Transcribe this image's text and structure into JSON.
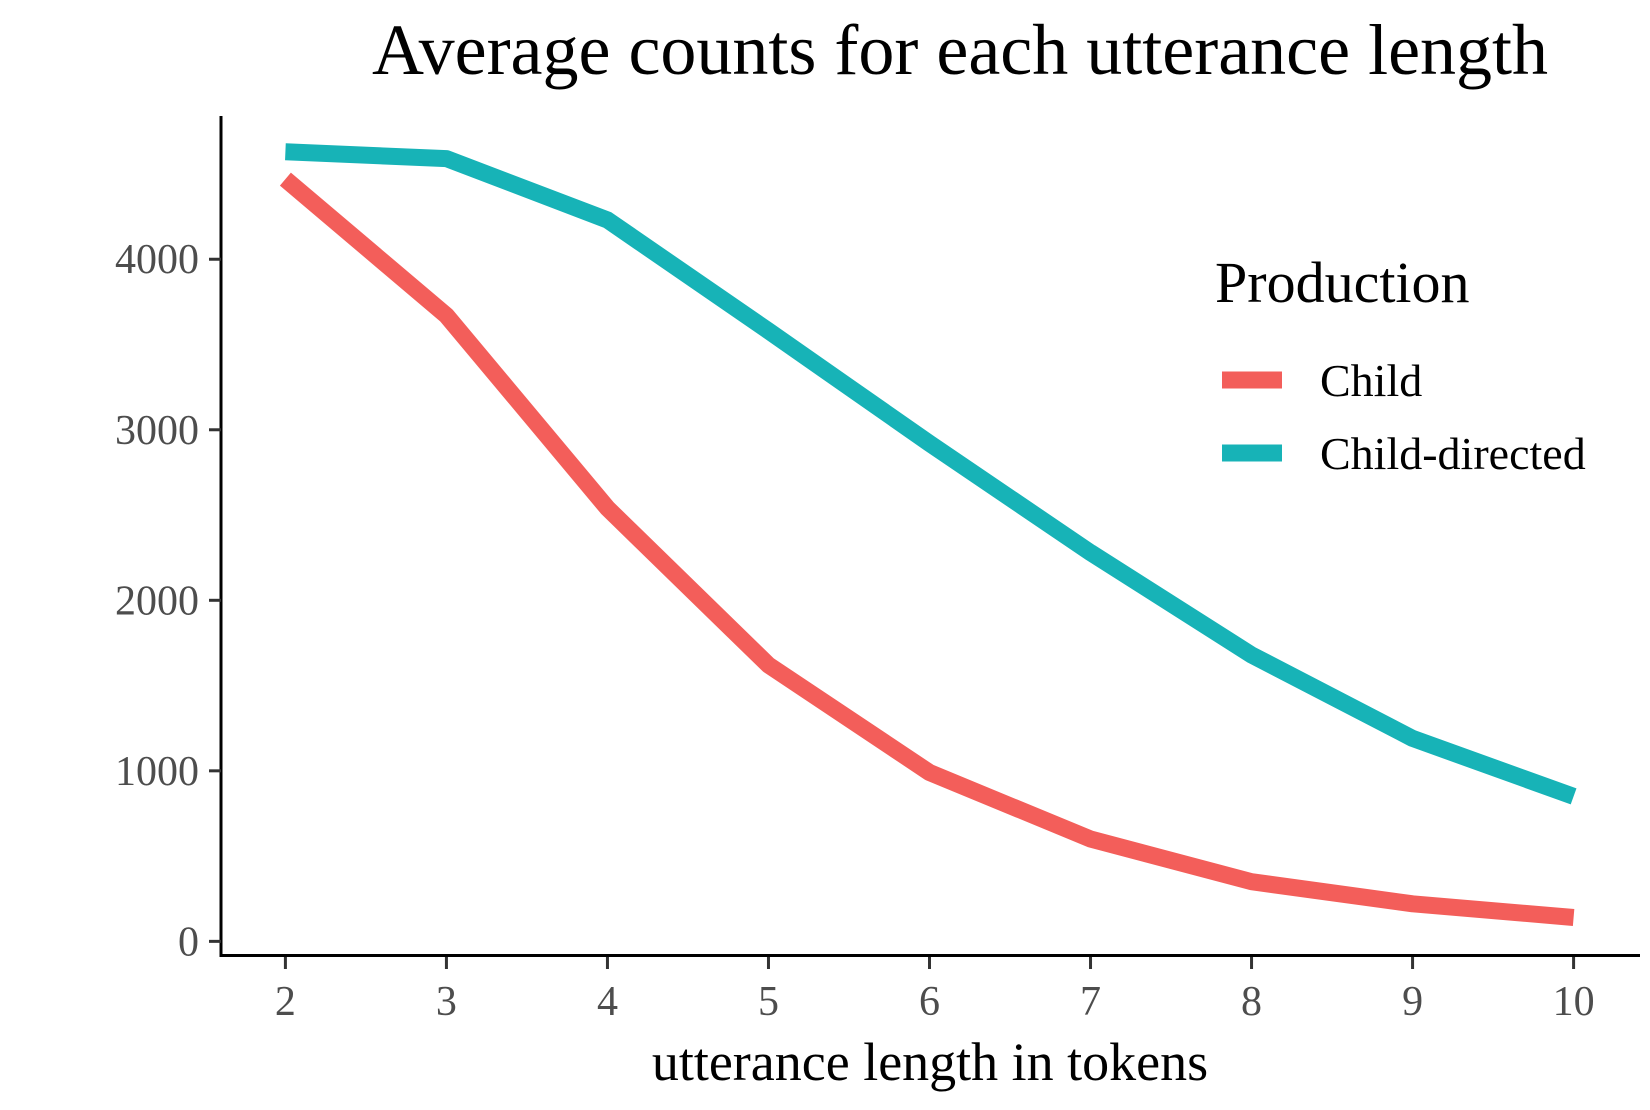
{
  "chart_data": {
    "type": "line",
    "title": "Average counts for each utterance length",
    "xlabel": "utterance length in tokens",
    "ylabel": "",
    "x": [
      2,
      3,
      4,
      5,
      6,
      7,
      8,
      9,
      10
    ],
    "xticks": [
      "2",
      "3",
      "4",
      "5",
      "6",
      "7",
      "8",
      "9",
      "10"
    ],
    "yticks": [
      "0",
      "1000",
      "2000",
      "3000",
      "4000"
    ],
    "xlim": [
      1.6,
      10.4
    ],
    "ylim": [
      -80,
      4840
    ],
    "grid": false,
    "legend": {
      "title": "Production",
      "placement": "right"
    },
    "series": [
      {
        "name": "Child",
        "color": "#f35e5a",
        "values": [
          4470,
          3670,
          2540,
          1620,
          990,
          600,
          350,
          220,
          140
        ]
      },
      {
        "name": "Child-directed",
        "color": "#17b3b7",
        "values": [
          4630,
          4590,
          4230,
          3580,
          2920,
          2280,
          1680,
          1190,
          850
        ]
      }
    ]
  }
}
